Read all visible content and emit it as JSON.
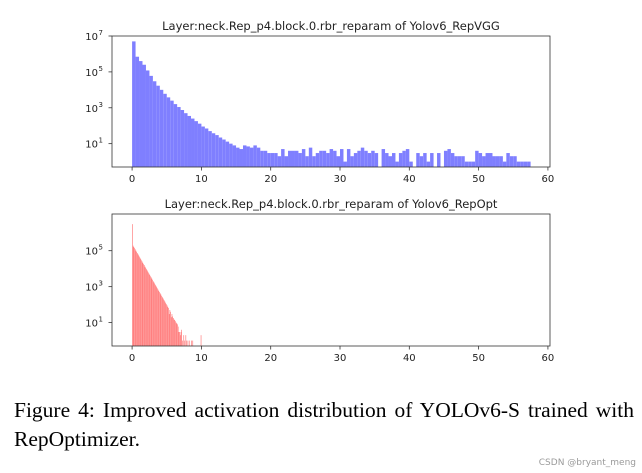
{
  "chart_data": [
    {
      "type": "bar",
      "title": "Layer:neck.Rep_p4.block.0.rbr_reparam of Yolov6_RepVGG",
      "color": "#7f7fff",
      "y_scale": "log",
      "xlim": [
        -2.9,
        60.3
      ],
      "ylim": [
        0.5,
        10000000
      ],
      "x_ticks": [
        0,
        10,
        20,
        30,
        40,
        50,
        60
      ],
      "y_ticks": [
        {
          "value": 10,
          "base": "10",
          "exp": "1"
        },
        {
          "value": 1000,
          "base": "10",
          "exp": "3"
        },
        {
          "value": 100000,
          "base": "10",
          "exp": "5"
        },
        {
          "value": 10000000,
          "base": "10",
          "exp": "7"
        }
      ],
      "bin_start": 0,
      "bin_width": 0.5,
      "counts": [
        5000000,
        700000,
        400000,
        250000,
        120000,
        60000,
        30000,
        17000,
        10000,
        6000,
        3800,
        2500,
        1600,
        1100,
        750,
        500,
        350,
        250,
        180,
        130,
        90,
        70,
        50,
        38,
        30,
        22,
        17,
        13,
        10,
        8,
        6,
        5,
        8,
        7,
        6,
        8,
        6,
        4,
        4,
        3,
        3,
        3,
        2,
        5,
        2,
        4,
        4,
        4,
        3,
        5,
        2,
        6,
        2,
        3,
        4,
        4,
        3,
        5,
        4,
        2,
        5,
        1,
        5,
        2,
        3,
        4,
        6,
        4,
        3,
        4,
        3,
        0,
        5,
        3,
        2,
        3,
        1,
        3,
        4,
        5,
        1,
        0,
        3,
        2,
        3,
        1,
        3,
        0,
        3,
        0,
        4,
        5,
        3,
        2,
        2,
        2,
        1,
        1,
        1,
        4,
        3,
        2,
        3,
        3,
        2,
        2,
        2,
        1,
        3,
        2,
        2,
        1,
        1,
        1,
        1
      ]
    },
    {
      "type": "bar",
      "title": "Layer:neck.Rep_p4.block.0.rbr_reparam of Yolov6_RepOpt",
      "color": "#ff7f7f",
      "y_scale": "log",
      "xlim": [
        -2.9,
        60.3
      ],
      "ylim": [
        0.5,
        11000000
      ],
      "x_ticks": [
        0,
        10,
        20,
        30,
        40,
        50,
        60
      ],
      "y_ticks": [
        {
          "value": 10,
          "base": "10",
          "exp": "1"
        },
        {
          "value": 1000,
          "base": "10",
          "exp": "3"
        },
        {
          "value": 100000,
          "base": "10",
          "exp": "5"
        }
      ],
      "bin_start": 0,
      "bin_width": 0.1,
      "counts": [
        3000000,
        190000,
        160000,
        140000,
        120000,
        100000,
        87000,
        74000,
        64000,
        55000,
        47000,
        40000,
        34000,
        29000,
        25000,
        21000,
        18000,
        16000,
        13000,
        11500,
        9800,
        8300,
        7100,
        6100,
        5200,
        4500,
        3800,
        3300,
        2800,
        2400,
        2000,
        1750,
        1500,
        1280,
        1100,
        930,
        800,
        680,
        580,
        500,
        430,
        370,
        310,
        270,
        230,
        195,
        170,
        145,
        120,
        105,
        90,
        75,
        65,
        30,
        50,
        40,
        20,
        30,
        22,
        18,
        15,
        14,
        12,
        10,
        9,
        8,
        6,
        3,
        3,
        2,
        3,
        4,
        1,
        0,
        2,
        1,
        0,
        2,
        1,
        0,
        1,
        0,
        1,
        0,
        0,
        1,
        0,
        1,
        0,
        0,
        0,
        0,
        0,
        0,
        0,
        0,
        0,
        0,
        0,
        2
      ]
    }
  ],
  "caption": "Figure 4: Improved activation distribution of YOLOv6-S trained with RepOptimizer.",
  "watermark": "CSDN @bryant_meng"
}
